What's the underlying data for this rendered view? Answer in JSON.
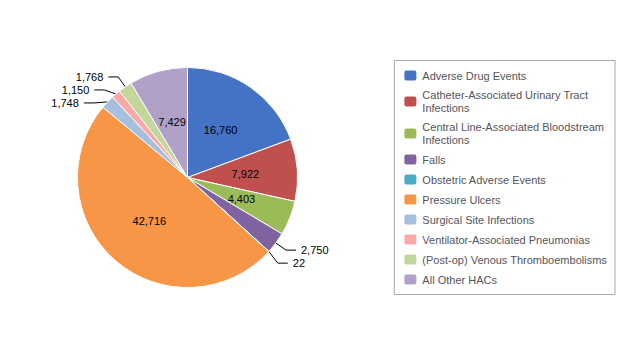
{
  "chart_data": {
    "type": "pie",
    "categories": [
      "Adverse Drug Events",
      "Catheter-Associated Urinary Tract\nInfections",
      "Central Line-Associated Bloodstream\nInfections",
      "Falls",
      "Obstetric Adverse Events",
      "Pressure Ulcers",
      "Surgical Site Infections",
      "Ventilator-Associated Pneumonias",
      "(Post-op) Venous Thromboembolisms",
      "All Other HACs"
    ],
    "values": [
      16760,
      7922,
      4403,
      2750,
      22,
      42716,
      1748,
      1150,
      1768,
      7429
    ],
    "value_labels": [
      "16,760",
      "7,922",
      "4,403",
      "2,750",
      "22",
      "42,716",
      "1,748",
      "1,150",
      "1,768",
      "7,429"
    ],
    "colors": [
      "#4472C4",
      "#C0504D",
      "#9BBB59",
      "#8064A2",
      "#4BACC6",
      "#F79646",
      "#A5BFDD",
      "#F9A9A8",
      "#C4D79B",
      "#B1A0C7"
    ],
    "data_labels": true,
    "legend": "right"
  }
}
